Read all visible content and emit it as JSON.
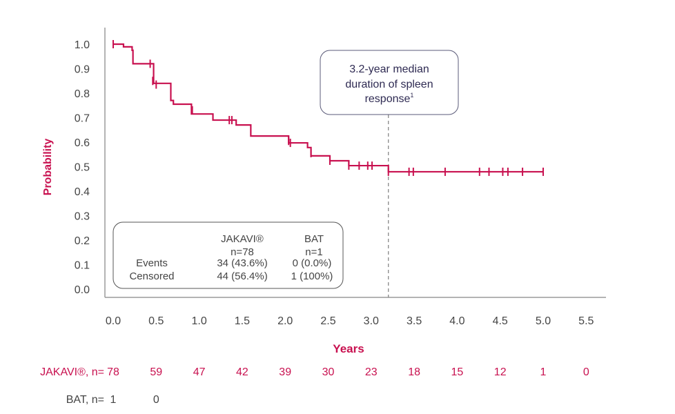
{
  "chart_data": {
    "type": "line",
    "subtype": "kaplan-meier",
    "xlabel": "Years",
    "ylabel": "Probability",
    "xlim": [
      0,
      5.8
    ],
    "ylim": [
      0,
      1.0
    ],
    "x_ticks": [
      "0.0",
      "0.5",
      "1.0",
      "1.5",
      "2.0",
      "2.5",
      "3.0",
      "3.5",
      "4.0",
      "4.5",
      "5.0",
      "5.5"
    ],
    "y_ticks": [
      "0.0",
      "0.1",
      "0.2",
      "0.3",
      "0.4",
      "0.5",
      "0.6",
      "0.7",
      "0.8",
      "0.9",
      "1.0"
    ],
    "grid": false,
    "colors": {
      "series": "#c8104f",
      "annotation_text": "#2e2a52",
      "axis": "#999999",
      "bat": "#444444"
    },
    "series": [
      {
        "name": "JAKAVI®",
        "steps": [
          [
            0,
            1.0
          ],
          [
            0.12,
            0.989
          ],
          [
            0.22,
            0.975
          ],
          [
            0.23,
            0.92
          ],
          [
            0.47,
            0.84
          ],
          [
            0.67,
            0.77
          ],
          [
            0.7,
            0.755
          ],
          [
            0.91,
            0.715
          ],
          [
            1.16,
            0.69
          ],
          [
            1.43,
            0.67
          ],
          [
            1.6,
            0.625
          ],
          [
            2.04,
            0.597
          ],
          [
            2.26,
            0.578
          ],
          [
            2.3,
            0.544
          ],
          [
            2.52,
            0.524
          ],
          [
            2.74,
            0.504
          ],
          [
            3.2,
            0.479
          ],
          [
            5.0,
            0.479
          ]
        ],
        "censored": [
          [
            0.0,
            1.0
          ],
          [
            0.43,
            0.92
          ],
          [
            0.46,
            0.85
          ],
          [
            0.5,
            0.835
          ],
          [
            0.92,
            0.73
          ],
          [
            1.35,
            0.69
          ],
          [
            1.38,
            0.69
          ],
          [
            2.04,
            0.605
          ],
          [
            2.06,
            0.597
          ],
          [
            2.3,
            0.555
          ],
          [
            2.52,
            0.524
          ],
          [
            2.74,
            0.504
          ],
          [
            2.86,
            0.504
          ],
          [
            2.96,
            0.504
          ],
          [
            3.01,
            0.504
          ],
          [
            3.2,
            0.479
          ],
          [
            3.44,
            0.479
          ],
          [
            3.49,
            0.479
          ],
          [
            3.86,
            0.479
          ],
          [
            4.26,
            0.479
          ],
          [
            4.37,
            0.479
          ],
          [
            4.53,
            0.479
          ],
          [
            4.59,
            0.479
          ],
          [
            4.76,
            0.479
          ],
          [
            5.0,
            0.479
          ]
        ]
      }
    ],
    "annotation": {
      "lines": [
        "3.2-year median",
        "duration of spleen",
        "response"
      ],
      "superscript": "1",
      "x": 3.2
    },
    "summary_table": {
      "headers": [
        [
          "JAKAVI®",
          "n=78"
        ],
        [
          "BAT",
          "n=1"
        ]
      ],
      "rows": [
        {
          "label": "Events",
          "jakavi": "34 (43.6%)",
          "bat": "0 (0.0%)"
        },
        {
          "label": "Censored",
          "jakavi": "44 (56.4%)",
          "bat": "1 (100%)"
        }
      ]
    },
    "risk_table": {
      "jakavi_label": "JAKAVI®, n=",
      "jakavi": [
        "78",
        "59",
        "47",
        "42",
        "39",
        "30",
        "23",
        "18",
        "15",
        "12",
        "1",
        "0"
      ],
      "bat_label": "BAT, n=",
      "bat": [
        "1",
        "0"
      ]
    }
  }
}
